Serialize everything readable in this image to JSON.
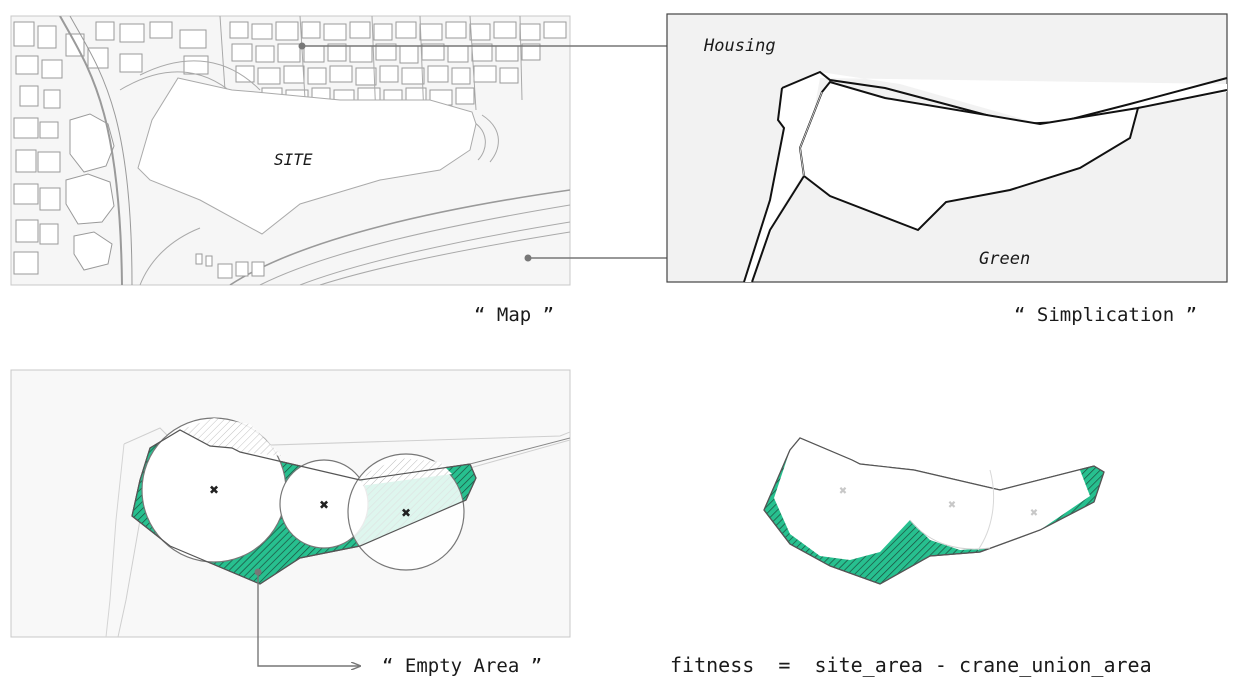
{
  "panels": {
    "map": {
      "caption": "“ Map ”",
      "site_label": "SITE",
      "housing_label": "Housing",
      "green_label": "Green"
    },
    "simplification": {
      "caption": "“ Simplication ”"
    },
    "empty_area": {
      "caption": "“ Empty Area ”"
    },
    "fitness": {
      "formula": "fitness  =  site_area - crane_union_area"
    }
  },
  "colors": {
    "empty_area_fill": "#27c08f",
    "hatch_line": "#1d4a3c",
    "outline": "#555555",
    "map_bg": "#f6f6f6",
    "green_bg": "#f2f2f2"
  }
}
